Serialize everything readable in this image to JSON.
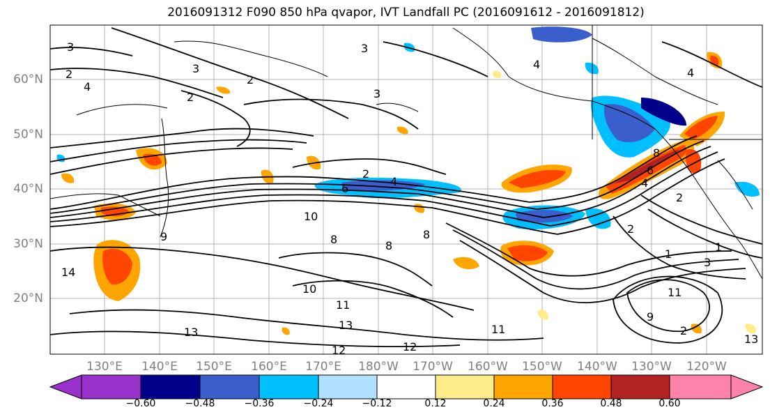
{
  "title": "2016091312 F090 850 hPa qvapor, IVT Landfall PC (2016091612 - 2016091812)",
  "map": {
    "lat_labels": [
      "60°N",
      "50°N",
      "40°N",
      "30°N",
      "20°N"
    ],
    "lon_labels": [
      "130°E",
      "140°E",
      "150°E",
      "160°E",
      "170°E",
      "180°W",
      "170°W",
      "160°W",
      "150°W",
      "140°W",
      "130°W",
      "120°W"
    ],
    "contour_labels": [
      "3",
      "2",
      "4",
      "3",
      "2",
      "3",
      "3",
      "2",
      "4",
      "4",
      "6",
      "2",
      "4",
      "10",
      "8",
      "8",
      "8",
      "9",
      "14",
      "10",
      "11",
      "13",
      "13",
      "12",
      "12",
      "11",
      "11",
      "13",
      "9",
      "1",
      "3",
      "2",
      "8",
      "6",
      "4",
      "2",
      "1",
      "2"
    ]
  },
  "colorbar": {
    "colors": [
      "#9932cc",
      "#00008b",
      "#3a5fcd",
      "#00bfff",
      "#b0e2ff",
      "#ffffff",
      "#ffec8b",
      "#ffa500",
      "#ff4500",
      "#b22222",
      "#ff82ab"
    ],
    "tick_labels": [
      "−0.60",
      "−0.48",
      "−0.36",
      "−0.24",
      "−0.12",
      "0.12",
      "0.24",
      "0.36",
      "0.48",
      "0.60"
    ]
  }
}
